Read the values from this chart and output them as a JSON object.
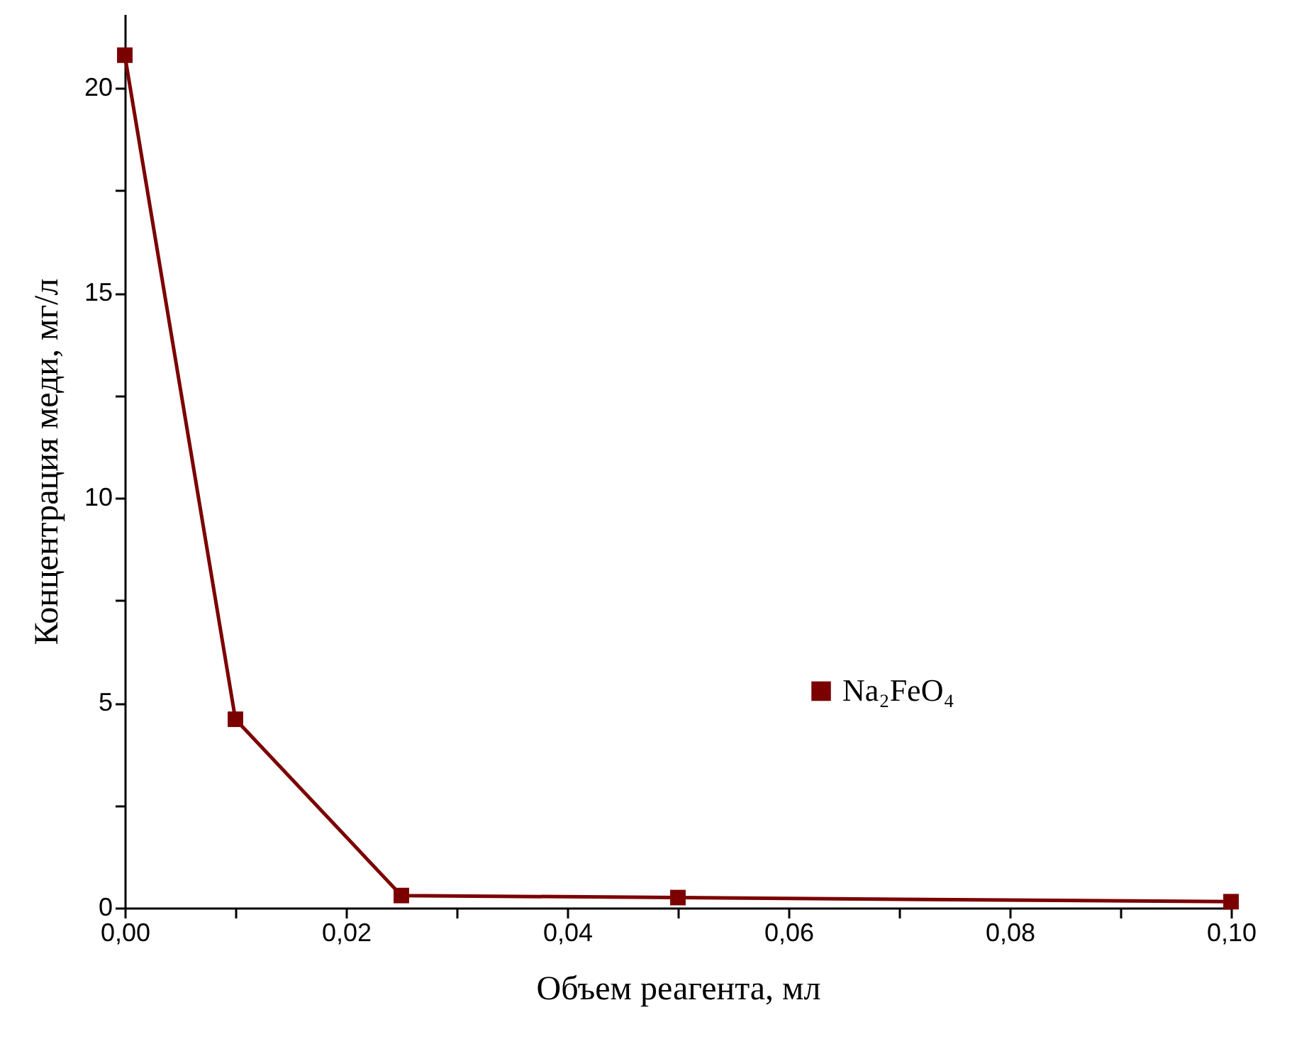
{
  "chart_data": {
    "type": "line",
    "xlabel": "Объем реагента, мл",
    "ylabel": "Концентрация меди, мг/л",
    "x": [
      0,
      0.01,
      0.025,
      0.05,
      0.1
    ],
    "series": [
      {
        "name": "Na₂FeO₄",
        "color": "#7b0000",
        "values": [
          20.8,
          4.6,
          0.3,
          0.25,
          0.15
        ]
      }
    ],
    "xlim": [
      0,
      0.1
    ],
    "ylim": [
      0,
      21.8
    ],
    "xticks": [
      {
        "value": 0,
        "label": "0,00"
      },
      {
        "value": 0.01,
        "label": null
      },
      {
        "value": 0.02,
        "label": "0,02"
      },
      {
        "value": 0.03,
        "label": null
      },
      {
        "value": 0.04,
        "label": "0,04"
      },
      {
        "value": 0.05,
        "label": null
      },
      {
        "value": 0.06,
        "label": "0,06"
      },
      {
        "value": 0.07,
        "label": null
      },
      {
        "value": 0.08,
        "label": "0,08"
      },
      {
        "value": 0.09,
        "label": null
      },
      {
        "value": 0.1,
        "label": "0,10"
      }
    ],
    "yticks": [
      0,
      {
        "value": 2.5,
        "label": null
      },
      5,
      {
        "value": 7.5,
        "label": null
      },
      10,
      {
        "value": 12.5,
        "label": null
      },
      15,
      {
        "value": 17.5,
        "label": null
      },
      20
    ],
    "marker": "square",
    "line_style": "solid",
    "legend": "right",
    "grid": false
  }
}
